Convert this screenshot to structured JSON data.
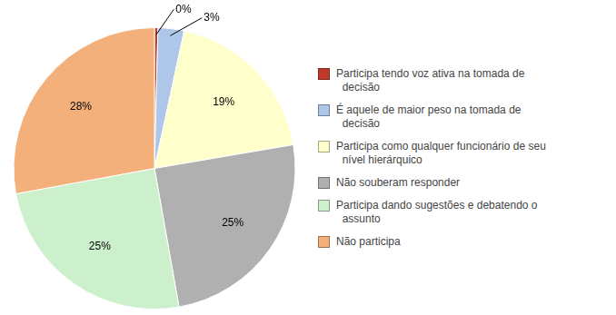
{
  "chart_data": {
    "type": "pie",
    "categories": [
      "Participa tendo voz ativa na tomada de\n  decisão",
      "É aquele de maior peso na tomada de\n  decisão",
      "Participa como qualquer funcionário de seu\n  nível hierárquico",
      "Não souberam responder",
      "Participa dando sugestões e debatendo o\n  assunto",
      "Não participa"
    ],
    "values": [
      0.4,
      3,
      19,
      25,
      25,
      28
    ],
    "value_labels": [
      "0%",
      "3%",
      "19%",
      "25%",
      "25%",
      "28%"
    ],
    "colors": [
      "#c0392b",
      "#aec6e8",
      "#ffffcc",
      "#b0b0b0",
      "#ccf0cc",
      "#f4b07a"
    ],
    "data_labels": true,
    "legend": "right"
  }
}
